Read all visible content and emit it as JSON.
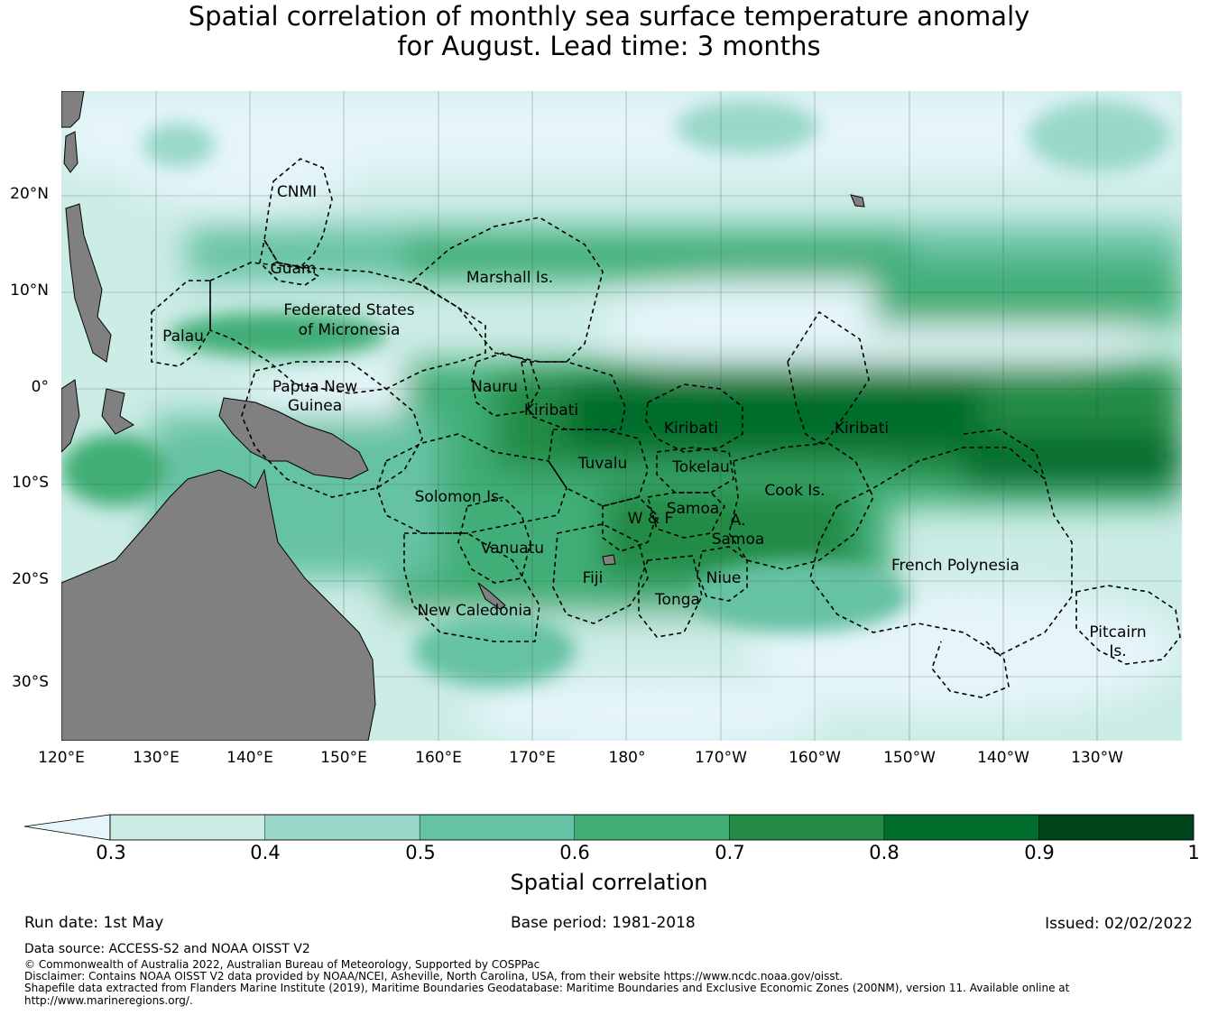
{
  "title": {
    "line1": "Spatial correlation of monthly sea surface temperature anomaly",
    "line2": "for August. Lead time: 3 months"
  },
  "map": {
    "lat_ticks": [
      "20°N",
      "10°N",
      "0°",
      "10°S",
      "20°S",
      "30°S"
    ],
    "lon_ticks": [
      "120°E",
      "130°E",
      "140°E",
      "150°E",
      "160°E",
      "170°E",
      "180°",
      "170°W",
      "160°W",
      "150°W",
      "140°W",
      "130°W"
    ],
    "regions": [
      {
        "name": "CNMI"
      },
      {
        "name": "Guam"
      },
      {
        "name": "Marshall Is."
      },
      {
        "name": "Federated States of Micronesia"
      },
      {
        "name": "Palau"
      },
      {
        "name": "Nauru"
      },
      {
        "name": "Papua New Guinea"
      },
      {
        "name": "Kiribati"
      },
      {
        "name": "Kiribati"
      },
      {
        "name": "Kiribati"
      },
      {
        "name": "Tuvalu"
      },
      {
        "name": "Tokelau"
      },
      {
        "name": "Solomon Is."
      },
      {
        "name": "Cook Is."
      },
      {
        "name": "Samoa"
      },
      {
        "name": "W & F"
      },
      {
        "name": "A. Samoa"
      },
      {
        "name": "Vanuatu"
      },
      {
        "name": "Fiji"
      },
      {
        "name": "Niue"
      },
      {
        "name": "Tonga"
      },
      {
        "name": "New Caledonia"
      },
      {
        "name": "French Polynesia"
      },
      {
        "name": "Pitcairn Is."
      }
    ],
    "colors": {
      "land": "#808080",
      "ocean_low": "#e5f5f9"
    }
  },
  "colorbar": {
    "label": "Spatial correlation",
    "ticks": [
      "0.3",
      "0.4",
      "0.5",
      "0.6",
      "0.7",
      "0.8",
      "0.9",
      "1"
    ],
    "colors": [
      "#e5f5f9",
      "#ccece6",
      "#99d8c9",
      "#66c2a4",
      "#41ae76",
      "#238b45",
      "#006d2c",
      "#00441b"
    ]
  },
  "meta": {
    "run_date": "Run date: 1st May",
    "base_period": "Base period: 1981-2018",
    "issued": "Issued: 02/02/2022"
  },
  "footer": {
    "source": "Data source: ACCESS-S2 and NOAA OISST V2",
    "copyright": "© Commonwealth of Australia 2022, Australian Bureau of Meteorology, Supported by COSPPac",
    "disclaimer": "Disclaimer: Contains NOAA OISST V2 data provided by NOAA/NCEI, Asheville, North Carolina, USA, from their website https://www.ncdc.noaa.gov/oisst.",
    "shapefile1": "Shapefile data extracted from Flanders Marine Institute (2019), Maritime Boundaries Geodatabase: Maritime Boundaries and Exclusive Economic Zones (200NM), version 11. Available online at",
    "shapefile2": "http://www.marineregions.org/."
  }
}
